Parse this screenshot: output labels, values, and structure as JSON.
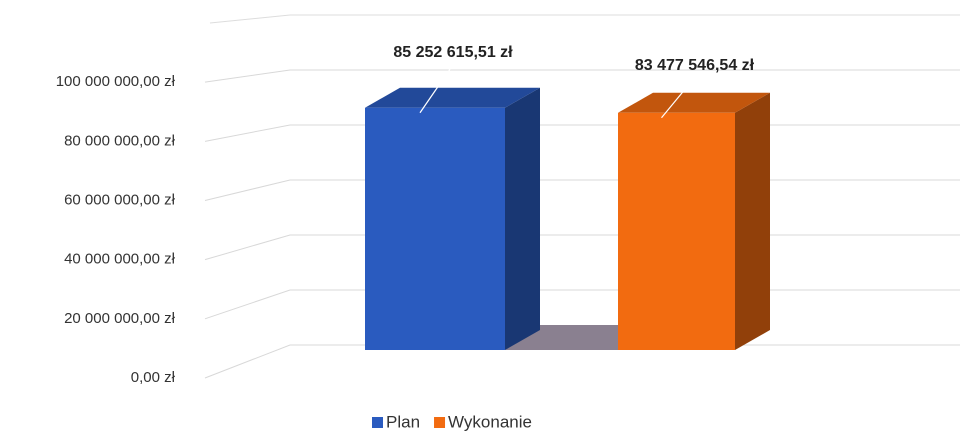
{
  "chart_data": {
    "type": "bar3d",
    "categories": [
      null
    ],
    "series": [
      {
        "name": "Plan",
        "color": "#2a5bbf",
        "values": [
          85252615.51
        ],
        "value_labels": [
          "85 252 615,51 zł"
        ]
      },
      {
        "name": "Wykonanie",
        "color": "#f26b10",
        "values": [
          83477546.54
        ],
        "value_labels": [
          "83 477 546,54 zł"
        ]
      }
    ],
    "ylim": [
      0,
      120000000
    ],
    "yticks": [
      {
        "value": 0,
        "label": "0,00 zł"
      },
      {
        "value": 20000000,
        "label": "20 000 000,00 zł"
      },
      {
        "value": 40000000,
        "label": "40 000 000,00 zł"
      },
      {
        "value": 60000000,
        "label": "60 000 000,00 zł"
      },
      {
        "value": 80000000,
        "label": "80 000 000,00 zł"
      },
      {
        "value": 100000000,
        "label": "100 000 000,00 zł"
      }
    ],
    "grid": true,
    "legend": "bottom"
  }
}
